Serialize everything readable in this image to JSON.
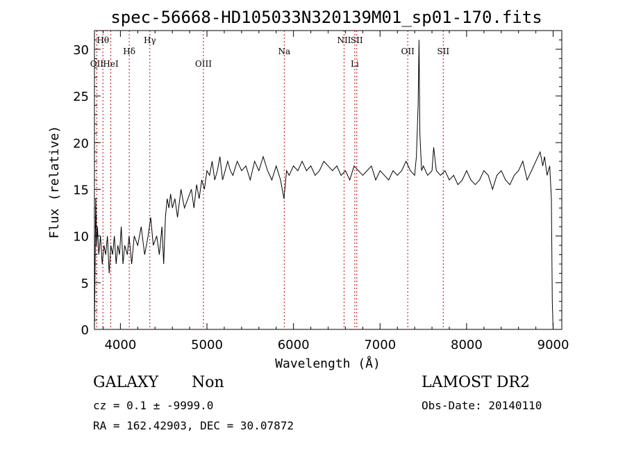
{
  "chart_data": {
    "type": "line",
    "title": "spec-56668-HD105033N320139M01_sp01-170.fits",
    "xlabel": "Wavelength (Å)",
    "ylabel": "Flux (relative)",
    "xlim": [
      3700,
      9100
    ],
    "ylim": [
      0,
      32
    ],
    "xticks": [
      4000,
      5000,
      6000,
      7000,
      8000,
      9000
    ],
    "yticks": [
      0,
      5,
      10,
      15,
      20,
      25,
      30
    ],
    "grid": false,
    "series": [
      {
        "x": [
          3700,
          3715,
          3725,
          3735,
          3750,
          3770,
          3790,
          3810,
          3830,
          3850,
          3870,
          3890,
          3910,
          3930,
          3950,
          3970,
          3990,
          4010,
          4030,
          4050,
          4080,
          4100,
          4130,
          4160,
          4200,
          4240,
          4280,
          4320,
          4350,
          4380,
          4420,
          4450,
          4480,
          4500,
          4520,
          4540,
          4560,
          4580,
          4600,
          4630,
          4660,
          4700,
          4740,
          4780,
          4820,
          4850,
          4880,
          4910,
          4940,
          4970,
          5000,
          5030,
          5060,
          5090,
          5120,
          5150,
          5180,
          5210,
          5240,
          5270,
          5300,
          5350,
          5400,
          5450,
          5500,
          5550,
          5600,
          5650,
          5700,
          5750,
          5800,
          5850,
          5890,
          5920,
          5950,
          6000,
          6050,
          6100,
          6150,
          6200,
          6250,
          6300,
          6350,
          6400,
          6450,
          6500,
          6550,
          6600,
          6650,
          6700,
          6750,
          6800,
          6850,
          6900,
          6950,
          7000,
          7050,
          7100,
          7150,
          7200,
          7250,
          7300,
          7350,
          7400,
          7420,
          7440,
          7450,
          7460,
          7480,
          7500,
          7550,
          7600,
          7620,
          7650,
          7700,
          7750,
          7800,
          7850,
          7900,
          7950,
          8000,
          8050,
          8100,
          8150,
          8200,
          8250,
          8300,
          8350,
          8400,
          8450,
          8500,
          8550,
          8600,
          8650,
          8700,
          8750,
          8800,
          8850,
          8880,
          8900,
          8930,
          8960,
          8980,
          8990,
          9000
        ],
        "y": [
          0,
          14,
          9,
          11,
          8,
          10,
          7,
          9,
          8,
          10,
          6,
          9,
          8,
          10,
          7,
          9,
          8,
          11,
          7,
          9,
          8,
          10,
          7,
          10,
          9,
          11,
          8,
          10,
          12,
          9,
          10,
          8,
          11,
          7,
          12,
          14,
          13,
          14.5,
          13,
          14,
          12,
          15,
          13,
          14,
          15,
          13,
          15.5,
          14,
          16,
          15,
          17,
          16.5,
          18,
          16,
          17,
          18.5,
          16,
          17,
          18,
          17,
          16.5,
          18,
          17,
          17.5,
          16,
          18,
          17,
          18.5,
          17,
          16,
          17.5,
          16,
          14,
          17,
          16.5,
          17.5,
          17,
          18,
          17,
          17.5,
          16.5,
          17,
          18,
          17.5,
          17,
          17.5,
          16.5,
          17,
          16,
          17.5,
          17,
          16.5,
          17,
          17.5,
          16,
          17,
          16.5,
          16,
          17,
          16.5,
          17,
          18,
          17,
          16.5,
          18.5,
          24,
          31,
          21,
          17,
          17.5,
          16.5,
          17,
          19.5,
          17,
          16.5,
          17,
          16,
          16.5,
          15.5,
          16,
          17,
          16,
          15.5,
          16,
          17,
          16.5,
          15,
          16.5,
          17,
          16,
          15.5,
          16.5,
          17,
          18,
          16,
          17,
          18,
          19,
          17.5,
          18.5,
          16.5,
          17.5,
          14,
          3,
          0
        ]
      }
    ],
    "line_markers": [
      {
        "label": "OII",
        "x": 3727,
        "row": 3
      },
      {
        "label": "Hθ",
        "x": 3798,
        "row": 1
      },
      {
        "label": "HeI",
        "x": 3889,
        "row": 3
      },
      {
        "label": "Hδ",
        "x": 4102,
        "row": 2
      },
      {
        "label": "Hγ",
        "x": 4340,
        "row": 1
      },
      {
        "label": "OIII",
        "x": 4959,
        "row": 3
      },
      {
        "label": "Na",
        "x": 5893,
        "row": 2
      },
      {
        "label": "NII",
        "x": 6584,
        "row": 1
      },
      {
        "label": "Li",
        "x": 6708,
        "row": 3
      },
      {
        "label": "SII",
        "x": 6731,
        "row": 1
      },
      {
        "label": "OII",
        "x": 7320,
        "row": 2
      },
      {
        "label": "SII",
        "x": 7730,
        "row": 2
      }
    ]
  },
  "info": {
    "class": "GALAXY",
    "subclass": "Non",
    "survey": "LAMOST DR2",
    "cz": "cz = 0.1 ± -9999.0",
    "obs_date": "Obs-Date: 20140110",
    "radec": "RA = 162.42903, DEC =  30.07872"
  }
}
